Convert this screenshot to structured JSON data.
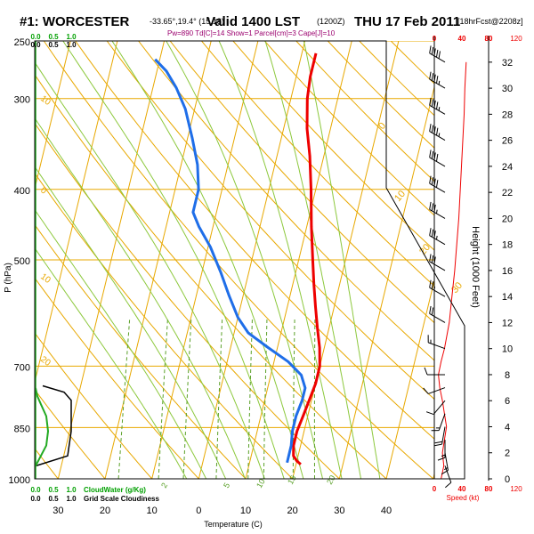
{
  "header": {
    "station": "#1: WORCESTER",
    "coords": "-33.65°,19.4° (15,18)",
    "valid": "Valid 1400 LST",
    "zulu": "(1200Z)",
    "date": "THU 17 Feb 2011",
    "forecast": "[18hrFcst@2208z]",
    "indices": "Pw=890 Td[C]=14 Show=1 Parcel[cm]=3 Cape[J]=10"
  },
  "colors": {
    "temperature": "#ee0000",
    "dewpoint": "#1f6ee8",
    "isotherm": "#e8a800",
    "dry_adiabat": "#e8a800",
    "moist_adiabat": "#8cc83c",
    "mixing_ratio": "#5aa028",
    "cloud_water": "#22aa22",
    "speed": "#ee0000",
    "labels_green": "#00a000",
    "labels_red": "#ee0000"
  },
  "chart_data": {
    "type": "skew-t log-p sounding",
    "xlabel": "Temperature (C)",
    "ylabel": "P (hPa)",
    "height_axis_label": "Height (1000 Feet)",
    "pressure_ticks": [
      250,
      300,
      400,
      500,
      700,
      850,
      1000
    ],
    "temp_ticks": [
      -30,
      -20,
      -10,
      0,
      10,
      20,
      30,
      40
    ],
    "temp_tick_labels": [
      "30",
      "20",
      "10",
      "0",
      "10",
      "20",
      "30",
      "40"
    ],
    "height_ticks": [
      0,
      2,
      4,
      6,
      8,
      10,
      12,
      14,
      16,
      18,
      20,
      22,
      24,
      26,
      28,
      30,
      32
    ],
    "isotherm_labels": [
      "0",
      "10",
      "20",
      "30"
    ],
    "dry_adiabat_labels": [
      "10",
      "0",
      "10",
      "20"
    ],
    "mixing_ratio_labels": [
      "2",
      "5",
      "10",
      "15",
      "20"
    ],
    "cloud_axis_top": [
      "0.0",
      "0.5",
      "1.0"
    ],
    "cloud_axis_bottom": [
      "0.0",
      "0.5",
      "1.0"
    ],
    "cloud_water_label": "CloudWater (g/Kg)",
    "grid_scale_cloud_label": "Grid Scale Cloudiness",
    "speed_axis": {
      "label": "Speed (kt)",
      "ticks": [
        "0",
        "40",
        "80"
      ],
      "secondary": "120"
    },
    "temperature_profile": [
      {
        "p": 955,
        "t": 21.0
      },
      {
        "p": 945,
        "t": 20.0
      },
      {
        "p": 930,
        "t": 19.0
      },
      {
        "p": 900,
        "t": 18.5
      },
      {
        "p": 860,
        "t": 18.5
      },
      {
        "p": 820,
        "t": 19.0
      },
      {
        "p": 780,
        "t": 19.5
      },
      {
        "p": 740,
        "t": 20.0
      },
      {
        "p": 700,
        "t": 20.0
      },
      {
        "p": 660,
        "t": 19.0
      },
      {
        "p": 620,
        "t": 17.5
      },
      {
        "p": 580,
        "t": 16.0
      },
      {
        "p": 540,
        "t": 14.5
      },
      {
        "p": 500,
        "t": 13.0
      },
      {
        "p": 450,
        "t": 11.0
      },
      {
        "p": 400,
        "t": 9.0
      },
      {
        "p": 360,
        "t": 7.0
      },
      {
        "p": 330,
        "t": 5.0
      },
      {
        "p": 300,
        "t": 3.5
      },
      {
        "p": 280,
        "t": 3.0
      },
      {
        "p": 260,
        "t": 3.0
      }
    ],
    "dewpoint_profile": [
      {
        "p": 950,
        "t": 18.0
      },
      {
        "p": 930,
        "t": 18.0
      },
      {
        "p": 900,
        "t": 18.0
      },
      {
        "p": 860,
        "t": 17.5
      },
      {
        "p": 820,
        "t": 17.5
      },
      {
        "p": 780,
        "t": 18.0
      },
      {
        "p": 750,
        "t": 18.0
      },
      {
        "p": 720,
        "t": 16.5
      },
      {
        "p": 690,
        "t": 13.0
      },
      {
        "p": 660,
        "t": 8.0
      },
      {
        "p": 630,
        "t": 3.0
      },
      {
        "p": 600,
        "t": 0.0
      },
      {
        "p": 560,
        "t": -3.0
      },
      {
        "p": 520,
        "t": -6.0
      },
      {
        "p": 480,
        "t": -9.5
      },
      {
        "p": 450,
        "t": -13.0
      },
      {
        "p": 430,
        "t": -15.0
      },
      {
        "p": 400,
        "t": -15.0
      },
      {
        "p": 370,
        "t": -16.5
      },
      {
        "p": 340,
        "t": -19.0
      },
      {
        "p": 310,
        "t": -22.0
      },
      {
        "p": 290,
        "t": -25.0
      },
      {
        "p": 275,
        "t": -28.0
      },
      {
        "p": 265,
        "t": -31.0
      }
    ],
    "wind_speed_profile": [
      {
        "h": 0,
        "kt": 10
      },
      {
        "h": 1,
        "kt": 14
      },
      {
        "h": 2,
        "kt": 12
      },
      {
        "h": 3,
        "kt": 15
      },
      {
        "h": 4,
        "kt": 18
      },
      {
        "h": 5,
        "kt": 15
      },
      {
        "h": 6,
        "kt": 12
      },
      {
        "h": 7,
        "kt": 8
      },
      {
        "h": 8,
        "kt": 6
      },
      {
        "h": 9,
        "kt": 10
      },
      {
        "h": 10,
        "kt": 15
      },
      {
        "h": 12,
        "kt": 22
      },
      {
        "h": 14,
        "kt": 26
      },
      {
        "h": 16,
        "kt": 30
      },
      {
        "h": 18,
        "kt": 33
      },
      {
        "h": 20,
        "kt": 36
      },
      {
        "h": 22,
        "kt": 38
      },
      {
        "h": 24,
        "kt": 40
      },
      {
        "h": 26,
        "kt": 42
      },
      {
        "h": 28,
        "kt": 44
      },
      {
        "h": 30,
        "kt": 45
      },
      {
        "h": 32,
        "kt": 47
      }
    ],
    "wind_barbs": [
      {
        "h": 1.0,
        "dir": 160,
        "kt": 10
      },
      {
        "h": 2.0,
        "dir": 170,
        "kt": 15
      },
      {
        "h": 3.0,
        "dir": 180,
        "kt": 15
      },
      {
        "h": 4.0,
        "dir": 190,
        "kt": 20
      },
      {
        "h": 5.0,
        "dir": 200,
        "kt": 15
      },
      {
        "h": 6.0,
        "dir": 220,
        "kt": 10
      },
      {
        "h": 7.0,
        "dir": 250,
        "kt": 10
      },
      {
        "h": 8.0,
        "dir": 270,
        "kt": 10
      },
      {
        "h": 10.0,
        "dir": 290,
        "kt": 15
      },
      {
        "h": 12.0,
        "dir": 300,
        "kt": 20
      },
      {
        "h": 14.0,
        "dir": 300,
        "kt": 25
      },
      {
        "h": 16.0,
        "dir": 300,
        "kt": 30
      },
      {
        "h": 18.0,
        "dir": 300,
        "kt": 35
      },
      {
        "h": 20.0,
        "dir": 300,
        "kt": 35
      },
      {
        "h": 22.0,
        "dir": 300,
        "kt": 40
      },
      {
        "h": 24.0,
        "dir": 300,
        "kt": 40
      },
      {
        "h": 26.0,
        "dir": 300,
        "kt": 45
      },
      {
        "h": 28.0,
        "dir": 300,
        "kt": 45
      },
      {
        "h": 30.0,
        "dir": 300,
        "kt": 45
      },
      {
        "h": 32.0,
        "dir": 300,
        "kt": 50
      }
    ],
    "cloud_water_profile": [
      {
        "p": 960,
        "v": 0.0
      },
      {
        "p": 900,
        "v": 0.3
      },
      {
        "p": 860,
        "v": 0.35
      },
      {
        "p": 820,
        "v": 0.3
      },
      {
        "p": 790,
        "v": 0.15
      },
      {
        "p": 770,
        "v": 0.05
      },
      {
        "p": 750,
        "v": 0.0
      }
    ],
    "grid_cloud_profile": [
      {
        "p": 960,
        "v": 0.0
      },
      {
        "p": 930,
        "v": 0.9
      },
      {
        "p": 860,
        "v": 1.0
      },
      {
        "p": 780,
        "v": 1.0
      },
      {
        "p": 760,
        "v": 0.8
      },
      {
        "p": 745,
        "v": 0.2
      }
    ]
  }
}
